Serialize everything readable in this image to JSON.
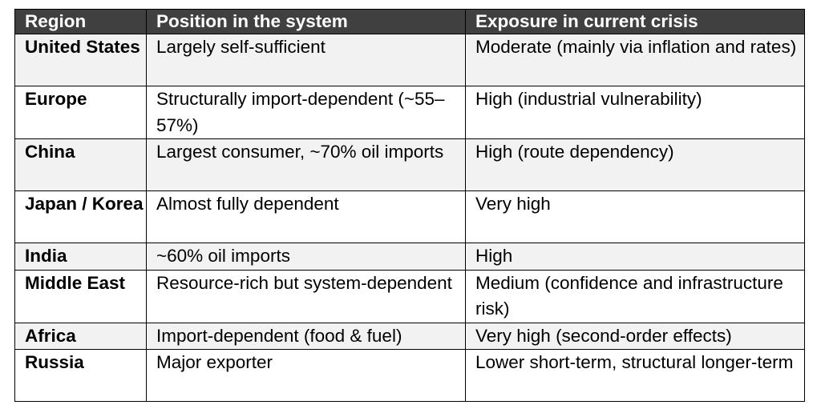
{
  "headers": {
    "region": "Region",
    "position": "Position in the system",
    "exposure": "Exposure in current crisis"
  },
  "rows": [
    {
      "region": "United States",
      "position": "Largely self-sufficient",
      "exposure": "Moderate (mainly via inflation and rates)"
    },
    {
      "region": "Europe",
      "position": "Structurally import-dependent (~55–57%)",
      "exposure": "High (industrial vulnerability)"
    },
    {
      "region": "China",
      "position": "Largest consumer, ~70% oil imports",
      "exposure": "High (route dependency)"
    },
    {
      "region": "Japan / Korea",
      "position": "Almost fully dependent",
      "exposure": "Very high"
    },
    {
      "region": "India",
      "position": "~60% oil imports",
      "exposure": "High"
    },
    {
      "region": "Middle East",
      "position": "Resource-rich but system-dependent",
      "exposure": "Medium (confidence and infrastructure risk)"
    },
    {
      "region": "Africa",
      "position": "Import-dependent (food & fuel)",
      "exposure": "Very high (second-order effects)"
    },
    {
      "region": "Russia",
      "position": "Major exporter",
      "exposure": "Lower short-term, structural longer-term"
    }
  ]
}
